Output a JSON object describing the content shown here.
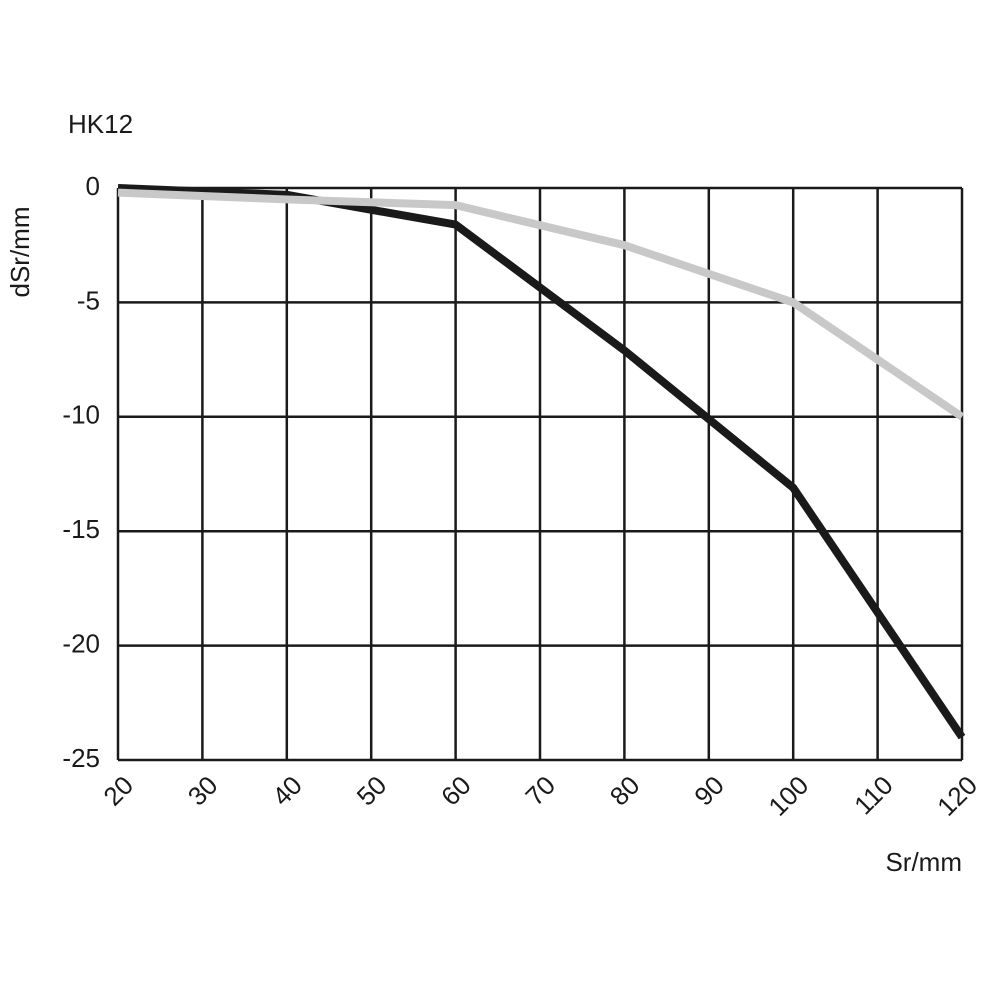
{
  "chart_data": {
    "type": "line",
    "title": "HK12",
    "x_label": "Sr/mm",
    "y_label": "dSr/mm",
    "x": [
      20,
      40,
      60,
      80,
      100,
      120
    ],
    "series": [
      {
        "color": "#1a1a1a",
        "values": [
          0,
          -0.3,
          -1.6,
          -7.1,
          -13.1,
          -24
        ]
      },
      {
        "color": "#c8c8c8",
        "values": [
          -0.2,
          -0.5,
          -0.75,
          -2.5,
          -5,
          -10
        ]
      }
    ],
    "xlim": [
      20,
      120
    ],
    "xticks": [
      20,
      30,
      40,
      50,
      60,
      70,
      80,
      90,
      100,
      110,
      120
    ],
    "ylim": [
      -25,
      0
    ],
    "yticks": [
      0,
      -5,
      -10,
      -15,
      -20,
      -25
    ],
    "grid": true
  }
}
